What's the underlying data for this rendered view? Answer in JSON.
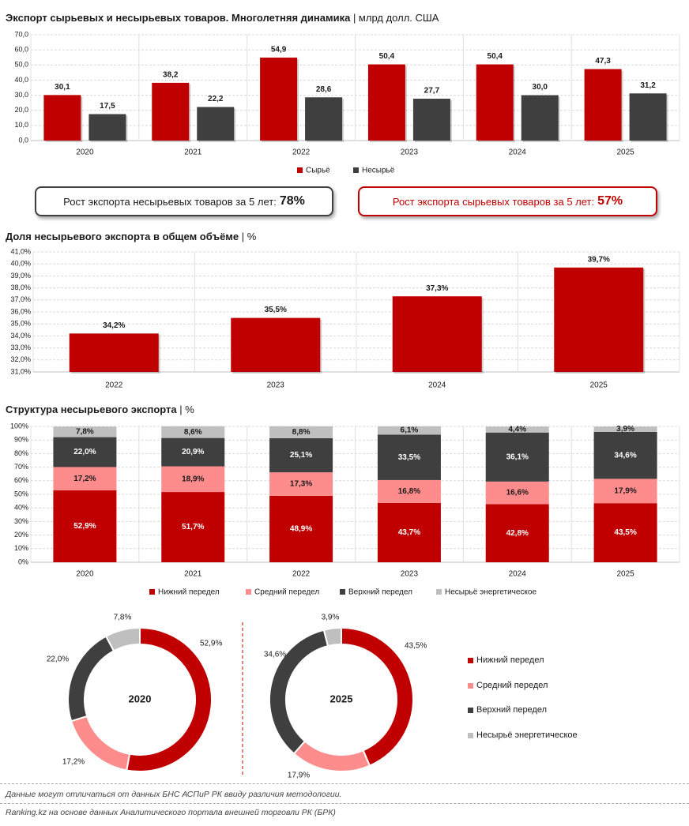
{
  "titles": {
    "chart1_main": "Экспорт сырьевых и несырьевых товаров. Многолетняя динамика",
    "chart1_unit": "| млрд долл. США",
    "chart2_main": "Доля несырьевого экспорта в общем объёме",
    "chart2_unit": "| %",
    "chart3_main": "Структура несырьевого экспорта",
    "chart3_unit": "| %"
  },
  "callouts": {
    "nonraw_text": "Рост экспорта несырьевых товаров за 5 лет:",
    "nonraw_value": "78%",
    "raw_text": "Рост экспорта сырьевых товаров за 5 лет:",
    "raw_value": "57%"
  },
  "footnotes": {
    "note": "Данные могут отличаться от данных БНС АСПиР РК ввиду различия методологии.",
    "source": "Ranking.kz на основе данных Аналитического портала внешней торговли РК (БРК)"
  },
  "colors": {
    "red": "#c00000",
    "dark": "#3f3f3f",
    "pink": "#ff8c8c",
    "light_grey": "#bfbfbf"
  },
  "chart_data": [
    {
      "type": "bar",
      "categories": [
        "2020",
        "2021",
        "2022",
        "2023",
        "2024",
        "2025"
      ],
      "series": [
        {
          "name": "Сырьё",
          "values": [
            30.1,
            38.2,
            54.9,
            50.4,
            50.4,
            47.3
          ],
          "labels": [
            "30,1",
            "38,2",
            "54,9",
            "50,4",
            "50,4",
            "47,3"
          ],
          "color": "#c00000"
        },
        {
          "name": "Несырьё",
          "values": [
            17.5,
            22.2,
            28.6,
            27.7,
            30.0,
            31.2
          ],
          "labels": [
            "17,5",
            "22,2",
            "28,6",
            "27,7",
            "30,0",
            "31,2"
          ],
          "color": "#3f3f3f"
        }
      ],
      "yticks": [
        "0,0",
        "10,0",
        "20,0",
        "30,0",
        "40,0",
        "50,0",
        "60,0",
        "70,0"
      ],
      "ylim": [
        0,
        70
      ],
      "grid": true,
      "legend": "bottom"
    },
    {
      "type": "bar",
      "categories": [
        "2022",
        "2023",
        "2024",
        "2025"
      ],
      "values": [
        34.2,
        35.5,
        37.3,
        39.7
      ],
      "labels": [
        "34,2%",
        "35,5%",
        "37,3%",
        "39,7%"
      ],
      "color": "#c00000",
      "yticks": [
        "31,0%",
        "32,0%",
        "33,0%",
        "34,0%",
        "35,0%",
        "36,0%",
        "37,0%",
        "38,0%",
        "39,0%",
        "40,0%",
        "41,0%"
      ],
      "ylim": [
        31,
        41
      ],
      "grid": true
    },
    {
      "type": "bar",
      "stacked": true,
      "categories": [
        "2020",
        "2021",
        "2022",
        "2023",
        "2024",
        "2025"
      ],
      "series": [
        {
          "name": "Нижний передел",
          "values": [
            52.9,
            51.7,
            48.9,
            43.7,
            42.8,
            43.5
          ],
          "labels": [
            "52,9%",
            "51,7%",
            "48,9%",
            "43,7%",
            "42,8%",
            "43,5%"
          ],
          "color": "#c00000"
        },
        {
          "name": "Средний передел",
          "values": [
            17.2,
            18.9,
            17.3,
            16.8,
            16.6,
            17.9
          ],
          "labels": [
            "17,2%",
            "18,9%",
            "17,3%",
            "16,8%",
            "16,6%",
            "17,9%"
          ],
          "color": "#ff8c8c"
        },
        {
          "name": "Верхний передел",
          "values": [
            22.0,
            20.9,
            25.1,
            33.5,
            36.1,
            34.6
          ],
          "labels": [
            "22,0%",
            "20,9%",
            "25,1%",
            "33,5%",
            "36,1%",
            "34,6%"
          ],
          "color": "#3f3f3f"
        },
        {
          "name": "Несырьё энергетическое",
          "values": [
            7.8,
            8.6,
            8.8,
            6.1,
            4.4,
            3.9
          ],
          "labels": [
            "7,8%",
            "8,6%",
            "8,8%",
            "6,1%",
            "4,4%",
            "3,9%"
          ],
          "color": "#bfbfbf"
        }
      ],
      "yticks": [
        "0%",
        "10%",
        "20%",
        "30%",
        "40%",
        "50%",
        "60%",
        "70%",
        "80%",
        "90%",
        "100%"
      ],
      "ylim": [
        0,
        100
      ],
      "grid": true,
      "legend": "bottom"
    },
    {
      "type": "pie",
      "donut": true,
      "center_label": "2020",
      "categories": [
        "Нижний передел",
        "Средний передел",
        "Верхний передел",
        "Несырьё энергетическое"
      ],
      "values": [
        52.9,
        17.2,
        22.0,
        7.8
      ],
      "labels": [
        "52,9%",
        "17,2%",
        "22,0%",
        "7,8%"
      ]
    },
    {
      "type": "pie",
      "donut": true,
      "center_label": "2025",
      "categories": [
        "Нижний передел",
        "Средний передел",
        "Верхний передел",
        "Несырьё энергетическое"
      ],
      "values": [
        43.5,
        17.9,
        34.6,
        3.9
      ],
      "labels": [
        "43,5%",
        "17,9%",
        "34,6%",
        "3,9%"
      ],
      "legend": "right"
    }
  ]
}
